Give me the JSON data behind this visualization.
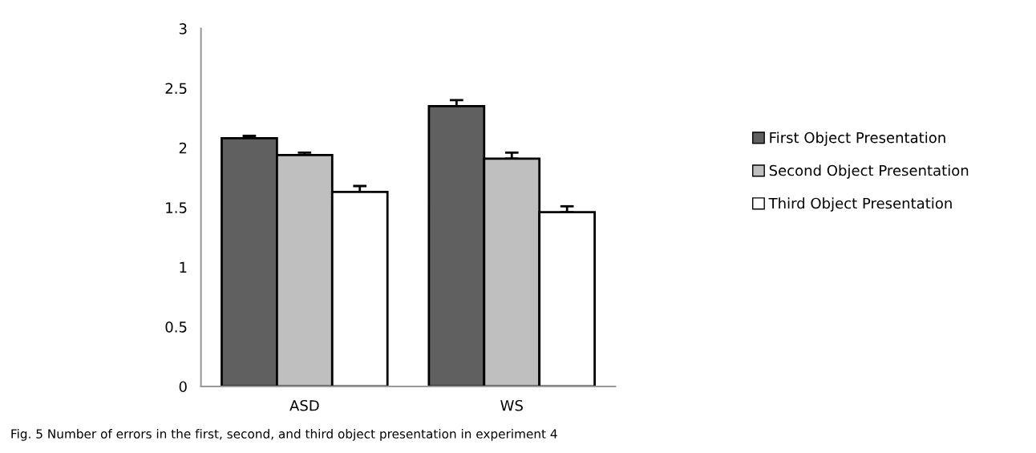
{
  "chart_data": {
    "type": "bar",
    "categories": [
      "ASD",
      "WS"
    ],
    "series": [
      {
        "name": "First Object Presentation",
        "color": "#606060",
        "values": [
          2.08,
          2.35
        ],
        "errors": [
          [
            2.08,
            2.1
          ],
          [
            2.35,
            2.4
          ]
        ]
      },
      {
        "name": "Second Object Presentation",
        "color": "#bfbfbf",
        "values": [
          1.94,
          1.91
        ],
        "errors": [
          [
            1.94,
            1.96
          ],
          [
            1.91,
            1.96
          ]
        ]
      },
      {
        "name": "Third Object Presentation",
        "color": "#ffffff",
        "values": [
          1.63,
          1.46
        ],
        "errors": [
          [
            1.63,
            1.68
          ],
          [
            1.46,
            1.51
          ]
        ]
      }
    ],
    "ylim": [
      0,
      3
    ],
    "yticks": [
      0,
      0.5,
      1,
      1.5,
      2,
      2.5,
      3
    ],
    "grid": false,
    "legend": "right",
    "annotations": [
      "Fig. 5 Number of errors in the first, second, and third object presentation in experiment 4"
    ]
  }
}
